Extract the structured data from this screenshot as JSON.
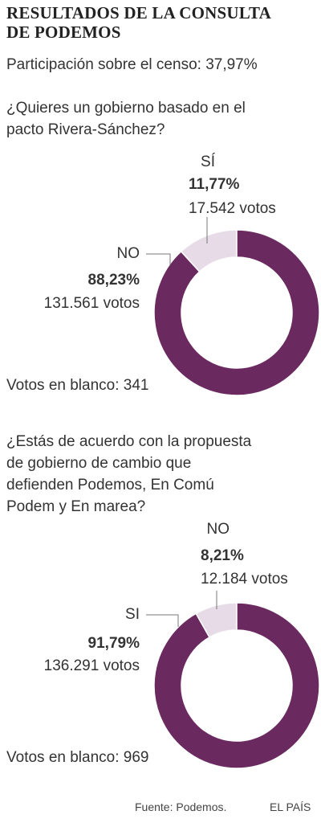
{
  "title_line1": "RESULTADOS DE LA CONSULTA",
  "title_line2": "DE PODEMOS",
  "participation": "Participación sobre el censo: 37,97%",
  "q1": {
    "question_line1": "¿Quieres un gobierno basado en el",
    "question_line2": "pacto Rivera-Sánchez?",
    "small": {
      "label": "SÍ",
      "pct": "11,77%",
      "votes": "17.542  votos"
    },
    "large": {
      "label": "NO",
      "pct": "88,23%",
      "votes": "131.561  votos"
    },
    "blank": "Votos en blanco: 341"
  },
  "q2": {
    "question_line1": "¿Estás de acuerdo con la propuesta",
    "question_line2": "de gobierno de cambio que",
    "question_line3": "defienden Podemos, En Comú",
    "question_line4": "Podem y En marea?",
    "small": {
      "label": "NO",
      "pct": "8,21%",
      "votes": "12.184  votos"
    },
    "large": {
      "label": "SI",
      "pct": "91,79%",
      "votes": "136.291  votos"
    },
    "blank": "Votos en blanco: 969"
  },
  "source": "Fuente: Podemos.",
  "brand": "EL PAÍS",
  "colors": {
    "major": "#6b2a5f",
    "minor": "#e6dbe6"
  },
  "chart_data": [
    {
      "type": "pie",
      "categories": [
        "SÍ",
        "NO"
      ],
      "values": [
        11.77,
        88.23
      ],
      "votes": [
        17542,
        131561
      ],
      "blank_votes": 341
    },
    {
      "type": "pie",
      "categories": [
        "NO",
        "SI"
      ],
      "values": [
        8.21,
        91.79
      ],
      "votes": [
        12184,
        136291
      ],
      "blank_votes": 969
    }
  ]
}
